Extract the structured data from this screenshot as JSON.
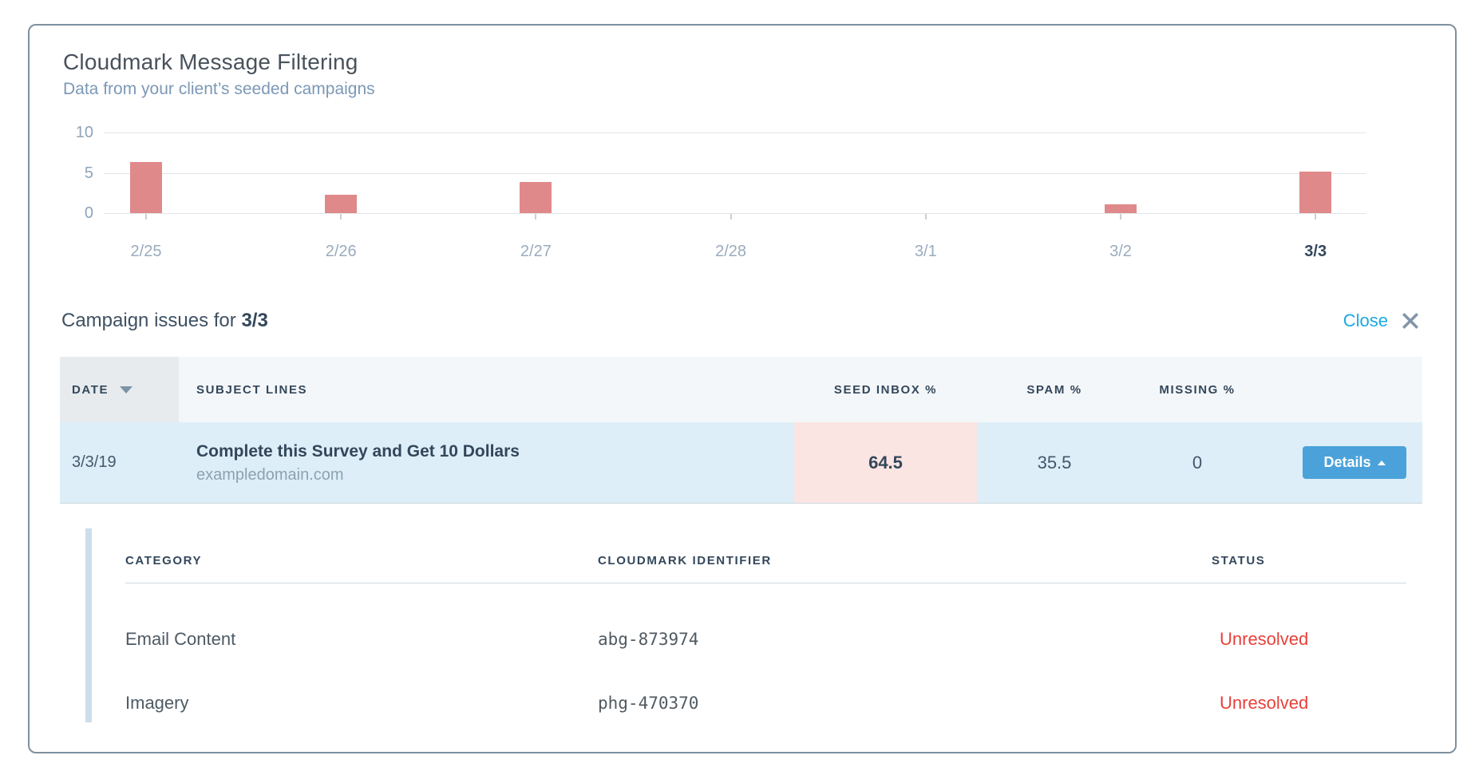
{
  "header": {
    "title": "Cloudmark Message Filtering",
    "subtitle": "Data from your client’s seeded campaigns"
  },
  "chart_data": {
    "type": "bar",
    "title": "Cloudmark Message Filtering",
    "categories": [
      "2/25",
      "2/26",
      "2/27",
      "2/28",
      "3/1",
      "3/2",
      "3/3"
    ],
    "values": [
      6.3,
      2.3,
      3.9,
      0,
      0,
      1.1,
      5.1
    ],
    "selected_category": "3/3",
    "yticks": [
      0,
      5,
      10
    ],
    "ylim": [
      0,
      10
    ],
    "grid": true,
    "legend": false,
    "bar_color": "#e0898b"
  },
  "issues": {
    "title_prefix": "Campaign issues for",
    "title_date": "3/3",
    "close_label": "Close",
    "table": {
      "headers": {
        "date": "DATE",
        "subject": "SUBJECT LINES",
        "seed_inbox": "SEED INBOX %",
        "spam": "SPAM %",
        "missing": "MISSING %"
      },
      "row": {
        "date": "3/3/19",
        "subject": "Complete this Survey and Get 10 Dollars",
        "domain": "exampledomain.com",
        "seed_inbox": "64.5",
        "spam": "35.5",
        "missing": "0",
        "details_label": "Details"
      }
    },
    "details": {
      "headers": {
        "category": "CATEGORY",
        "identifier": "CLOUDMARK IDENTIFIER",
        "status": "STATUS"
      },
      "rows": [
        {
          "category": "Email Content",
          "identifier": "abg-873974",
          "status": "Unresolved"
        },
        {
          "category": "Imagery",
          "identifier": "phg-470370",
          "status": "Unresolved"
        }
      ]
    }
  },
  "colors": {
    "accent_blue": "#4ba2da",
    "link_blue": "#1ba9e3",
    "bar_salmon": "#e0898b",
    "status_red": "#e8413b",
    "row_highlight": "#ddeef8",
    "seed_cell_pink": "#fbe5e2"
  }
}
